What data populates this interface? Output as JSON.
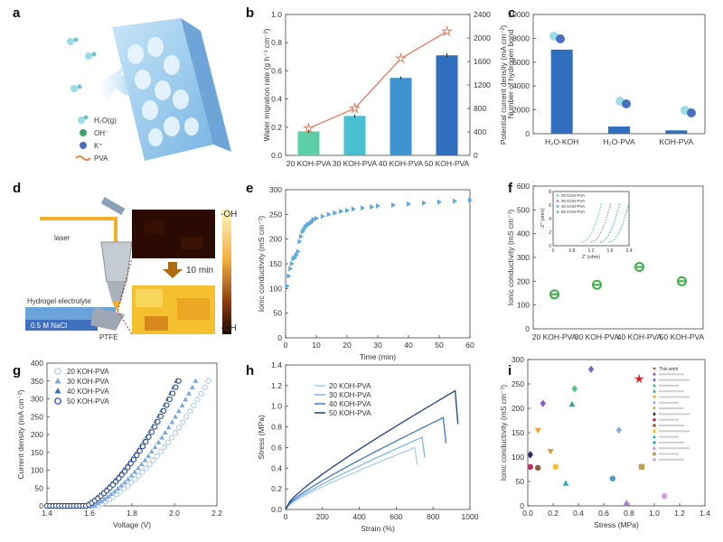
{
  "panel_labels": [
    "a",
    "b",
    "c",
    "d",
    "e",
    "f",
    "g",
    "h",
    "i"
  ],
  "schematic_a": {
    "legend": [
      {
        "icon": "water-molecule",
        "label": "H₂O(g)"
      },
      {
        "icon": "hydroxide-ion",
        "label": "OH⁻"
      },
      {
        "icon": "potassium-ion",
        "label": "K⁺"
      },
      {
        "icon": "pva-chain",
        "label": "PVA"
      }
    ]
  },
  "schematic_d": {
    "laser_label": "laser",
    "hydrogel_label": "Hydrogel electrolyte",
    "nacl_label": "0.5 M NaCl",
    "ptfe_label": "PTFE",
    "time_label": "10 min",
    "oh_label": "-OH",
    "ch_label": "-CH"
  },
  "chart_data": [
    {
      "id": "b",
      "type": "bar",
      "categories": [
        "20 KOH-PVA",
        "30 KOH-PVA",
        "40 KOH-PVA",
        "50 KOH-PVA"
      ],
      "series": [
        {
          "values": [
            0.17,
            0.28,
            0.55,
            0.71
          ],
          "errors": [
            0.01,
            0.01,
            0.01,
            0.015
          ]
        },
        {
          "values": [
            460,
            800,
            1650,
            2110
          ]
        }
      ],
      "ylabel": "Water migration rate (g h⁻¹ cm⁻²)",
      "ylabel2": "Potential current density (mA cm⁻²)",
      "ylim": [
        0,
        1.0
      ],
      "ylim2": [
        0,
        2400
      ],
      "yticks": [
        "0.0",
        "0.2",
        "0.4",
        "0.6",
        "0.8",
        "1.0"
      ],
      "yticks2": [
        "0",
        "400",
        "800",
        "1200",
        "1600",
        "2000",
        "2400"
      ],
      "colors": [
        "#5ccfa6",
        "#48c0d2",
        "#3f93cf",
        "#2f6fbe",
        "#e0826a"
      ]
    },
    {
      "id": "c",
      "type": "bar",
      "categories": [
        "H₂O-KOH",
        "H₂O-PVA",
        "KOH-PVA"
      ],
      "values": [
        7050,
        600,
        280
      ],
      "ylabel": "Number of hydrogen bond",
      "ylim": [
        0,
        10000
      ],
      "yticks": [
        "0",
        "2000",
        "4000",
        "6000",
        "8000",
        "10000"
      ],
      "color": "#2f6fbe"
    },
    {
      "id": "e",
      "type": "scatter",
      "x": [
        0.5,
        1,
        1.5,
        2,
        2.5,
        3,
        3.5,
        4,
        4.5,
        5,
        5.5,
        6,
        6.5,
        7,
        7.5,
        8,
        8.5,
        9,
        10,
        12,
        14,
        16,
        18,
        20,
        22,
        25,
        28,
        30,
        35,
        40,
        45,
        50,
        55,
        60
      ],
      "y": [
        105,
        125,
        140,
        150,
        160,
        163,
        168,
        175,
        195,
        205,
        215,
        220,
        225,
        228,
        230,
        232,
        235,
        240,
        242,
        246,
        250,
        253,
        256,
        258,
        261,
        263,
        265,
        267,
        269,
        271,
        273,
        275,
        277,
        279
      ],
      "xlabel": "Time (min)",
      "ylabel": "Ionic conductivity (mS cm⁻¹)",
      "xlim": [
        0,
        60
      ],
      "ylim": [
        0,
        300
      ],
      "xticks": [
        "0",
        "10",
        "20",
        "30",
        "40",
        "50",
        "60"
      ],
      "yticks": [
        "0",
        "50",
        "100",
        "150",
        "200",
        "250",
        "300"
      ],
      "color": "#5aa9dd"
    },
    {
      "id": "f",
      "type": "scatter",
      "categories": [
        "20 KOH-PVA",
        "30 KOH-PVA",
        "40 KOH-PVA",
        "50 KOH-PVA"
      ],
      "values": [
        145,
        185,
        260,
        200
      ],
      "ylabel": "Ionic conductivity (mS cm⁻¹)",
      "ylim": [
        0,
        600
      ],
      "yticks": [
        "0",
        "100",
        "200",
        "300",
        "400",
        "500",
        "600"
      ],
      "color": "#3cb04a",
      "inset": {
        "legend": [
          "20 KOH-PVA",
          "30 KOH-PVA",
          "40 KOH-PVA",
          "50 KOH-PVA"
        ],
        "xlabel": "Z' (ohm)",
        "ylabel": "-Z'' (ohm)",
        "xticks": [
          "0",
          "0.8",
          "1.2",
          "1.6",
          "2.4"
        ],
        "yticks": [
          "0",
          "2",
          "4",
          "6",
          "8"
        ],
        "colors": [
          "#7ecde8",
          "#a99be0",
          "#6bb7e6",
          "#6fc5bc"
        ]
      }
    },
    {
      "id": "g",
      "type": "line",
      "series": [
        {
          "name": "20 KOH-PVA",
          "v0": 1.64,
          "v1": 2.16
        },
        {
          "name": "30 KOH-PVA",
          "v0": 1.62,
          "v1": 2.1
        },
        {
          "name": "40 KOH-PVA",
          "v0": 1.58,
          "v1": 2.01
        },
        {
          "name": "50 KOH-PVA",
          "v0": 1.59,
          "v1": 2.02
        }
      ],
      "xlabel": "Voltage (V)",
      "ylabel": "Current density (mA cm⁻²)",
      "xlim": [
        1.4,
        2.2
      ],
      "ylim": [
        0,
        400
      ],
      "xticks": [
        "1.4",
        "1.6",
        "1.8",
        "2.0",
        "2.2"
      ],
      "yticks": [
        "0",
        "50",
        "100",
        "150",
        "200",
        "250",
        "300",
        "350",
        "400"
      ],
      "ymax": 350,
      "colors": [
        "#a8c8ee",
        "#7aa7de",
        "#3f6fbf",
        "#1f3f86"
      ]
    },
    {
      "id": "h",
      "type": "line",
      "series": [
        {
          "name": "20 KOH-PVA",
          "strain": 700,
          "stress": 0.6
        },
        {
          "name": "30 KOH-PVA",
          "strain": 740,
          "stress": 0.7
        },
        {
          "name": "40 KOH-PVA",
          "strain": 855,
          "stress": 0.89
        },
        {
          "name": "50 KOH-PVA",
          "strain": 920,
          "stress": 1.15
        }
      ],
      "xlabel": "Strain (%)",
      "ylabel": "Stress (MPa)",
      "xlim": [
        0,
        1000
      ],
      "ylim": [
        0,
        1.4
      ],
      "xticks": [
        "0",
        "200",
        "400",
        "600",
        "800",
        "1000"
      ],
      "yticks": [
        "0.0",
        "0.2",
        "0.4",
        "0.6",
        "0.8",
        "1.0",
        "1.2",
        "1.4"
      ],
      "colors": [
        "#a8d0f0",
        "#80b6e6",
        "#3f78c6",
        "#1f3f86"
      ]
    },
    {
      "id": "i",
      "type": "scatter",
      "xlabel": "Stress (MPa)",
      "ylabel": "Ionic conductivity (mS cm⁻¹)",
      "xlim": [
        0,
        1.4
      ],
      "ylim": [
        0,
        300
      ],
      "xticks": [
        "0.0",
        "0.2",
        "0.4",
        "0.6",
        "0.8",
        "1.0",
        "1.2",
        "1.4"
      ],
      "yticks": [
        "0",
        "50",
        "100",
        "150",
        "200",
        "250",
        "300"
      ],
      "legend_first": "This work",
      "points": [
        {
          "x": 0.88,
          "y": 260,
          "shape": "star",
          "color": "#e02020"
        },
        {
          "x": 0.12,
          "y": 210,
          "shape": "diamond",
          "color": "#8a5cc8"
        },
        {
          "x": 0.5,
          "y": 280,
          "shape": "diamond",
          "color": "#7a6cc0"
        },
        {
          "x": 0.37,
          "y": 240,
          "shape": "diamond",
          "color": "#55c08a"
        },
        {
          "x": 0.35,
          "y": 208,
          "shape": "triangle",
          "color": "#2ea59a"
        },
        {
          "x": 0.08,
          "y": 155,
          "shape": "tridown",
          "color": "#f0a030"
        },
        {
          "x": 0.72,
          "y": 155,
          "shape": "diamond",
          "color": "#8db0d8"
        },
        {
          "x": 0.18,
          "y": 112,
          "shape": "tridown",
          "color": "#d0a030"
        },
        {
          "x": 0.02,
          "y": 105,
          "shape": "diamond",
          "color": "#3a2a6a"
        },
        {
          "x": 0.02,
          "y": 80,
          "shape": "circle",
          "color": "#c03060"
        },
        {
          "x": 0.08,
          "y": 78,
          "shape": "circle",
          "color": "#8b5a3a"
        },
        {
          "x": 0.22,
          "y": 80,
          "shape": "circle",
          "color": "#f0c030"
        },
        {
          "x": 0.3,
          "y": 46,
          "shape": "triangle",
          "color": "#30b0b0"
        },
        {
          "x": 0.67,
          "y": 56,
          "shape": "circle",
          "color": "#4a9ad0"
        },
        {
          "x": 0.78,
          "y": 6,
          "shape": "triangle",
          "color": "#b080d0"
        },
        {
          "x": 0.9,
          "y": 80,
          "shape": "square",
          "color": "#c0a050"
        },
        {
          "x": 1.08,
          "y": 20,
          "shape": "circle",
          "color": "#d0a0e0"
        }
      ]
    }
  ]
}
